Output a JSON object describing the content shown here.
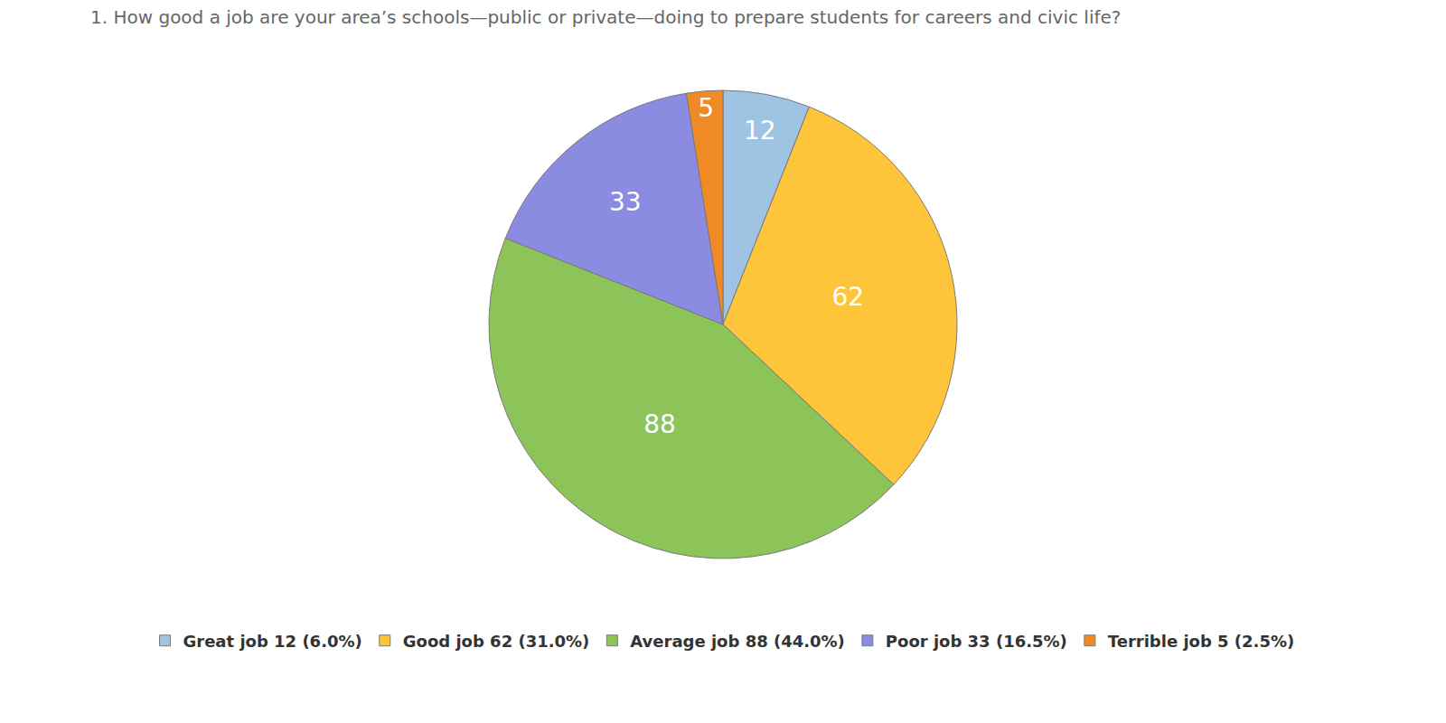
{
  "chart_data": {
    "type": "pie",
    "title": "1. How good a job are your area’s schools—public or private—doing to prepare students for careers and civic life?",
    "categories": [
      "Great job",
      "Good job",
      "Average job",
      "Poor job",
      "Terrible job"
    ],
    "values": [
      12,
      62,
      88,
      33,
      5
    ],
    "legend_labels": [
      "Great job 12 (6.0%)",
      "Good job 62 (31.0%)",
      "Average job 88 (44.0%)",
      "Poor job 33 (16.5%)",
      "Terrible job 5 (2.5%)"
    ],
    "colors": [
      "#9fc4e3",
      "#ffc53a",
      "#8dc45a",
      "#8b8be2",
      "#f08a24"
    ],
    "data_labels": true,
    "legend": "bottom"
  }
}
